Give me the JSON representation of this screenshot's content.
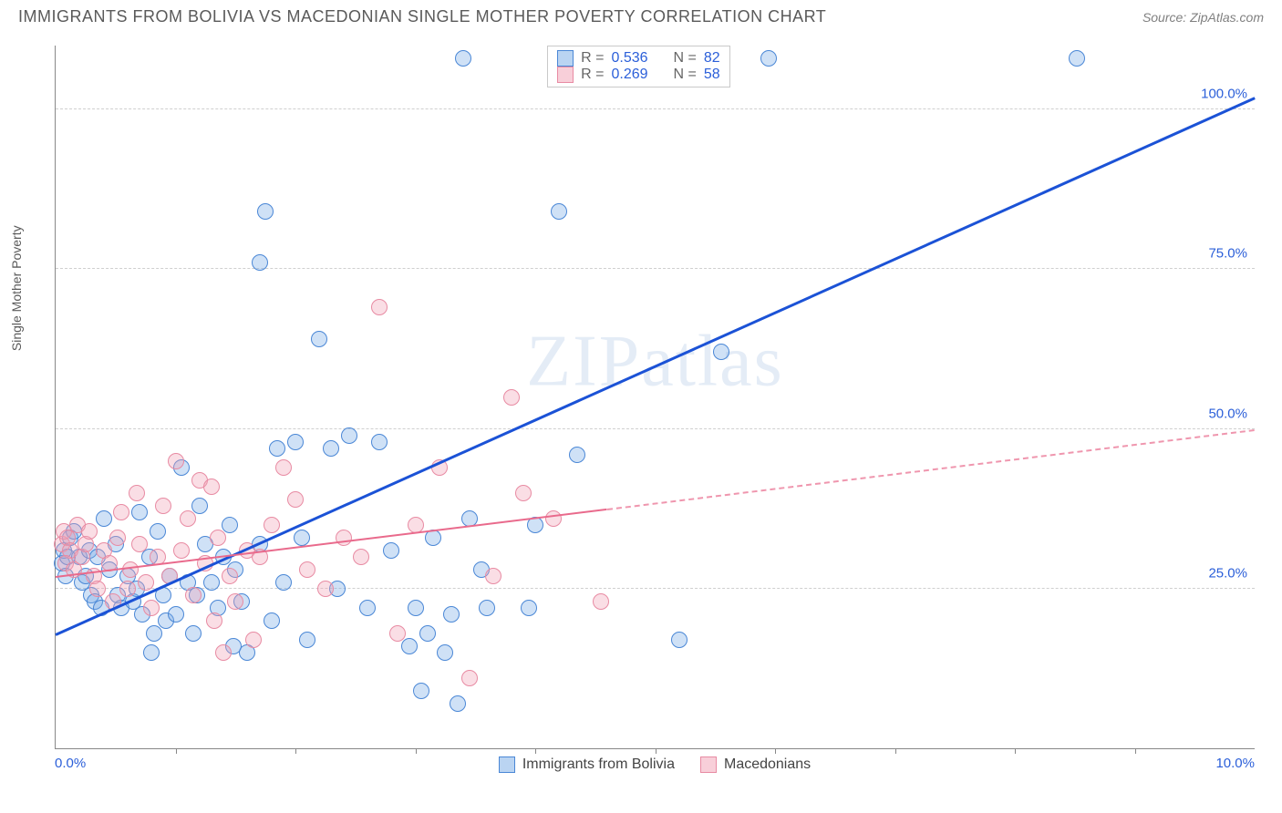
{
  "header": {
    "title": "IMMIGRANTS FROM BOLIVIA VS MACEDONIAN SINGLE MOTHER POVERTY CORRELATION CHART",
    "source": "Source: ZipAtlas.com"
  },
  "watermark": {
    "zip": "ZIP",
    "atlas": "atlas"
  },
  "chart": {
    "type": "scatter",
    "ylabel": "Single Mother Poverty",
    "xlim": [
      0,
      10
    ],
    "ylim": [
      0,
      110
    ],
    "x_ticks_labeled": [
      {
        "v": 0,
        "label": "0.0%"
      },
      {
        "v": 10,
        "label": "10.0%"
      }
    ],
    "x_minor_step": 1,
    "y_gridlines": [
      {
        "v": 25,
        "label": "25.0%"
      },
      {
        "v": 50,
        "label": "50.0%"
      },
      {
        "v": 75,
        "label": "75.0%"
      },
      {
        "v": 100,
        "label": "100.0%"
      }
    ],
    "background_color": "#ffffff",
    "grid_color": "#cfcfcf",
    "axis_color": "#888888",
    "tick_label_color": "#2b5fd9",
    "marker_radius": 9,
    "series": [
      {
        "name": "Immigrants from Bolivia",
        "color_fill": "rgba(117,169,230,0.35)",
        "color_stroke": "#4a87d6",
        "R": 0.536,
        "N": 82,
        "trend": {
          "x0": 0,
          "y0": 18,
          "x1": 10,
          "y1": 102,
          "color": "#1b52d6",
          "width": 3,
          "dash": false
        },
        "points": [
          [
            0.05,
            29
          ],
          [
            0.07,
            31
          ],
          [
            0.1,
            30
          ],
          [
            0.12,
            33
          ],
          [
            0.08,
            27
          ],
          [
            0.15,
            34
          ],
          [
            0.2,
            30
          ],
          [
            0.22,
            26
          ],
          [
            0.25,
            27
          ],
          [
            0.28,
            31
          ],
          [
            0.3,
            24
          ],
          [
            0.33,
            23
          ],
          [
            0.35,
            30
          ],
          [
            0.4,
            36
          ],
          [
            0.38,
            22
          ],
          [
            0.45,
            28
          ],
          [
            0.5,
            32
          ],
          [
            0.52,
            24
          ],
          [
            0.55,
            22
          ],
          [
            0.6,
            27
          ],
          [
            0.65,
            23
          ],
          [
            0.7,
            37
          ],
          [
            0.72,
            21
          ],
          [
            0.68,
            25
          ],
          [
            0.78,
            30
          ],
          [
            0.8,
            15
          ],
          [
            0.82,
            18
          ],
          [
            0.85,
            34
          ],
          [
            0.9,
            24
          ],
          [
            0.92,
            20
          ],
          [
            0.95,
            27
          ],
          [
            1.0,
            21
          ],
          [
            1.05,
            44
          ],
          [
            1.1,
            26
          ],
          [
            1.15,
            18
          ],
          [
            1.18,
            24
          ],
          [
            1.2,
            38
          ],
          [
            1.25,
            32
          ],
          [
            1.3,
            26
          ],
          [
            1.35,
            22
          ],
          [
            1.4,
            30
          ],
          [
            1.45,
            35
          ],
          [
            1.48,
            16
          ],
          [
            1.5,
            28
          ],
          [
            1.55,
            23
          ],
          [
            1.6,
            15
          ],
          [
            1.7,
            32
          ],
          [
            1.8,
            20
          ],
          [
            1.85,
            47
          ],
          [
            1.9,
            26
          ],
          [
            2.0,
            48
          ],
          [
            2.05,
            33
          ],
          [
            2.1,
            17
          ],
          [
            2.2,
            64
          ],
          [
            1.7,
            76
          ],
          [
            1.75,
            84
          ],
          [
            2.3,
            47
          ],
          [
            2.45,
            49
          ],
          [
            2.35,
            25
          ],
          [
            2.6,
            22
          ],
          [
            2.7,
            48
          ],
          [
            2.8,
            31
          ],
          [
            2.95,
            16
          ],
          [
            3.0,
            22
          ],
          [
            3.05,
            9
          ],
          [
            3.1,
            18
          ],
          [
            3.15,
            33
          ],
          [
            3.25,
            15
          ],
          [
            3.3,
            21
          ],
          [
            3.35,
            7
          ],
          [
            3.45,
            36
          ],
          [
            3.55,
            28
          ],
          [
            3.6,
            22
          ],
          [
            3.95,
            22
          ],
          [
            4.0,
            35
          ],
          [
            4.2,
            84
          ],
          [
            4.35,
            46
          ],
          [
            5.55,
            62
          ],
          [
            3.4,
            108
          ],
          [
            5.95,
            108
          ],
          [
            8.52,
            108
          ],
          [
            5.2,
            17
          ]
        ]
      },
      {
        "name": "Macedonians",
        "color_fill": "rgba(242,160,180,0.35)",
        "color_stroke": "#e88ba3",
        "R": 0.269,
        "N": 58,
        "trend": {
          "x0": 0,
          "y0": 27,
          "x1": 10,
          "y1": 50,
          "color": "#e96a8c",
          "width": 2.5,
          "dash_from_x": 4.6
        },
        "points": [
          [
            0.05,
            32
          ],
          [
            0.07,
            34
          ],
          [
            0.1,
            33
          ],
          [
            0.12,
            31
          ],
          [
            0.08,
            29
          ],
          [
            0.15,
            28
          ],
          [
            0.18,
            35
          ],
          [
            0.22,
            30
          ],
          [
            0.25,
            32
          ],
          [
            0.28,
            34
          ],
          [
            0.32,
            27
          ],
          [
            0.35,
            25
          ],
          [
            0.4,
            31
          ],
          [
            0.45,
            29
          ],
          [
            0.48,
            23
          ],
          [
            0.52,
            33
          ],
          [
            0.55,
            37
          ],
          [
            0.6,
            25
          ],
          [
            0.62,
            28
          ],
          [
            0.68,
            40
          ],
          [
            0.7,
            32
          ],
          [
            0.75,
            26
          ],
          [
            0.8,
            22
          ],
          [
            0.85,
            30
          ],
          [
            0.9,
            38
          ],
          [
            0.95,
            27
          ],
          [
            1.0,
            45
          ],
          [
            1.05,
            31
          ],
          [
            1.1,
            36
          ],
          [
            1.15,
            24
          ],
          [
            1.2,
            42
          ],
          [
            1.25,
            29
          ],
          [
            1.3,
            41
          ],
          [
            1.32,
            20
          ],
          [
            1.35,
            33
          ],
          [
            1.4,
            15
          ],
          [
            1.45,
            27
          ],
          [
            1.5,
            23
          ],
          [
            1.6,
            31
          ],
          [
            1.65,
            17
          ],
          [
            1.7,
            30
          ],
          [
            1.8,
            35
          ],
          [
            1.9,
            44
          ],
          [
            2.0,
            39
          ],
          [
            2.1,
            28
          ],
          [
            2.25,
            25
          ],
          [
            2.4,
            33
          ],
          [
            2.55,
            30
          ],
          [
            2.7,
            69
          ],
          [
            2.85,
            18
          ],
          [
            3.0,
            35
          ],
          [
            3.2,
            44
          ],
          [
            3.45,
            11
          ],
          [
            3.65,
            27
          ],
          [
            3.8,
            55
          ],
          [
            3.9,
            40
          ],
          [
            4.15,
            36
          ],
          [
            4.55,
            23
          ]
        ]
      }
    ],
    "legend_top": {
      "rows": [
        {
          "swatch": "blue",
          "R_label": "R =",
          "R": "0.536",
          "N_label": "N =",
          "N": "82"
        },
        {
          "swatch": "pink",
          "R_label": "R =",
          "R": "0.269",
          "N_label": "N =",
          "N": "58"
        }
      ]
    },
    "legend_bottom": [
      {
        "swatch": "blue",
        "label": "Immigrants from Bolivia"
      },
      {
        "swatch": "pink",
        "label": "Macedonians"
      }
    ]
  }
}
